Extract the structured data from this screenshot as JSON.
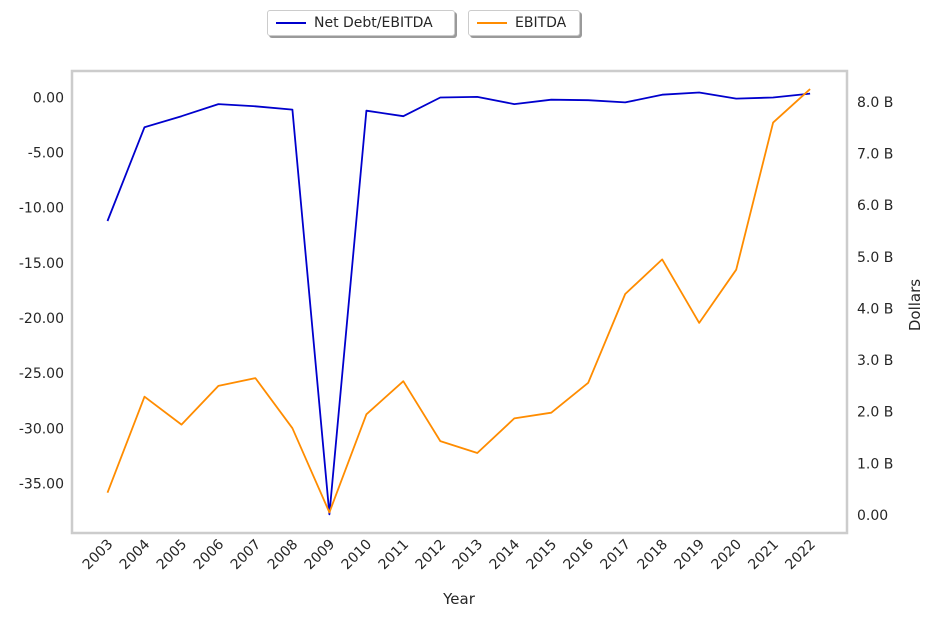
{
  "legend": {
    "items": [
      {
        "label": "Net Debt/EBITDA",
        "color": "#0000cd"
      },
      {
        "label": "EBITDA",
        "color": "#ff8c00"
      }
    ]
  },
  "chart_data": {
    "type": "line",
    "xlabel": "Year",
    "ylabel_left": "",
    "ylabel_right": "Dollars",
    "x": [
      "2003",
      "2004",
      "2005",
      "2006",
      "2007",
      "2008",
      "2009",
      "2010",
      "2011",
      "2012",
      "2013",
      "2014",
      "2015",
      "2016",
      "2017",
      "2018",
      "2019",
      "2020",
      "2021",
      "2022"
    ],
    "series": [
      {
        "name": "Net Debt/EBITDA",
        "axis": "left",
        "color": "#0000cd",
        "values": [
          -11.2,
          -2.7,
          -1.7,
          -0.6,
          -0.8,
          -1.1,
          -37.8,
          -1.2,
          -1.7,
          0.0,
          0.05,
          -0.6,
          -0.2,
          -0.25,
          -0.45,
          0.25,
          0.45,
          -0.1,
          0.0,
          0.35
        ]
      },
      {
        "name": "EBITDA",
        "axis": "right",
        "color": "#ff8c00",
        "values": [
          0.43,
          2.29,
          1.75,
          2.5,
          2.65,
          1.68,
          0.05,
          1.95,
          2.59,
          1.43,
          1.2,
          1.87,
          1.98,
          2.56,
          4.28,
          4.95,
          3.72,
          4.75,
          7.6,
          8.25
        ]
      }
    ],
    "ylim_left": [
      -39.5,
      2.4
    ],
    "ylim_right": [
      -0.35,
      8.6
    ],
    "yticks_left": [
      0,
      -5,
      -10,
      -15,
      -20,
      -25,
      -30,
      -35
    ],
    "yticklabels_left": [
      "0.00",
      "-5.00",
      "-10.00",
      "-15.00",
      "-20.00",
      "-25.00",
      "-30.00",
      "-35.00"
    ],
    "yticks_right": [
      0,
      1,
      2,
      3,
      4,
      5,
      6,
      7,
      8
    ],
    "yticklabels_right": [
      "0.00",
      "1.0 B",
      "2.0 B",
      "3.0 B",
      "4.0 B",
      "5.0 B",
      "6.0 B",
      "7.0 B",
      "8.0 B"
    ],
    "grid": false,
    "legend_position": "top-center"
  }
}
